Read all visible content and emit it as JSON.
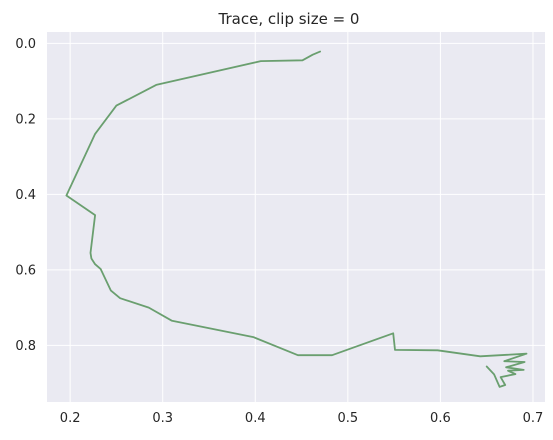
{
  "chart_data": {
    "type": "line",
    "title": "Trace, clip size = 0",
    "xlabel": "",
    "ylabel": "",
    "xlim": [
      0.175,
      0.713
    ],
    "ylim": [
      0.95,
      -0.03
    ],
    "y_inverted": true,
    "grid": true,
    "style": "seaborn-darkgrid",
    "x_ticks": [
      0.2,
      0.3,
      0.4,
      0.5,
      0.6,
      0.7
    ],
    "x_tick_labels": [
      "0.2",
      "0.3",
      "0.4",
      "0.5",
      "0.6",
      "0.7"
    ],
    "y_ticks": [
      0.0,
      0.2,
      0.4,
      0.6,
      0.8
    ],
    "y_tick_labels": [
      "0.0",
      "0.2",
      "0.4",
      "0.6",
      "0.8"
    ],
    "series": [
      {
        "color": "#6a9f6f",
        "x": [
          0.47,
          0.462,
          0.451,
          0.406,
          0.293,
          0.25,
          0.227,
          0.196,
          0.227,
          0.222,
          0.223,
          0.227,
          0.233,
          0.244,
          0.254,
          0.285,
          0.31,
          0.398,
          0.446,
          0.483,
          0.549,
          0.551,
          0.597,
          0.643,
          0.693,
          0.669,
          0.691,
          0.671,
          0.69,
          0.673,
          0.681,
          0.665,
          0.67,
          0.664,
          0.658,
          0.65
        ],
        "y": [
          0.022,
          0.03,
          0.045,
          0.047,
          0.11,
          0.165,
          0.24,
          0.403,
          0.455,
          0.555,
          0.57,
          0.585,
          0.598,
          0.655,
          0.675,
          0.7,
          0.735,
          0.778,
          0.826,
          0.826,
          0.768,
          0.812,
          0.813,
          0.829,
          0.822,
          0.842,
          0.844,
          0.858,
          0.865,
          0.867,
          0.876,
          0.884,
          0.905,
          0.91,
          0.877,
          0.856
        ]
      }
    ]
  }
}
